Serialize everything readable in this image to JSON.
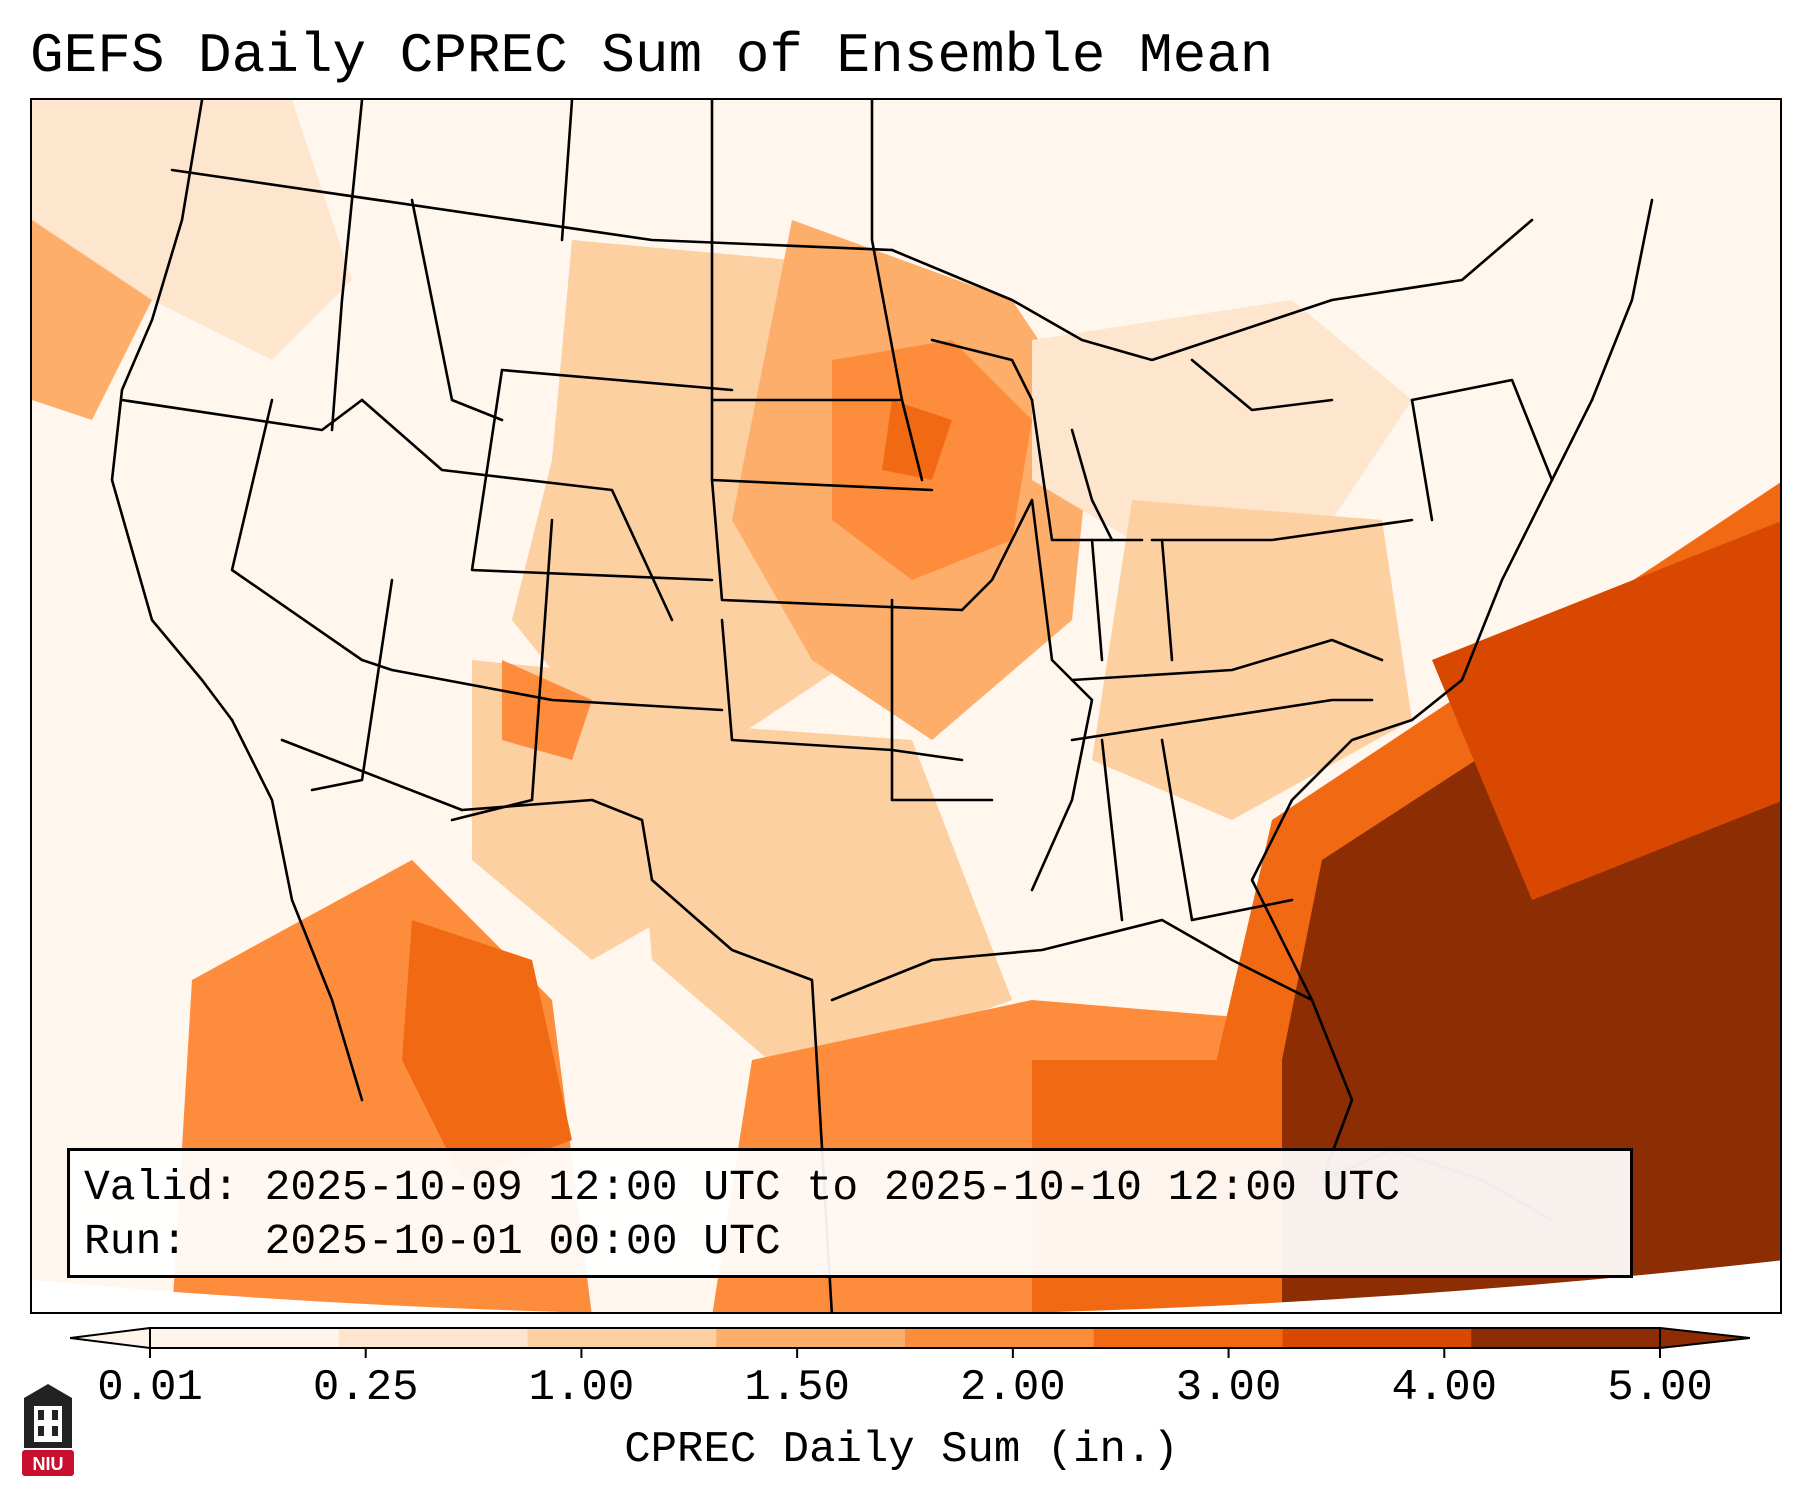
{
  "title": "GEFS Daily CPREC Sum of Ensemble Mean",
  "info": {
    "valid_line": "Valid: 2025-10-09 12:00 UTC to 2025-10-10 12:00 UTC",
    "run_line": "Run:   2025-10-01 00:00 UTC"
  },
  "colorbar": {
    "label": "CPREC Daily Sum (in.)",
    "ticks": [
      "0.01",
      "0.25",
      "1.00",
      "1.50",
      "2.00",
      "3.00",
      "4.00",
      "5.00"
    ],
    "colors": [
      "#fff5eb",
      "#fee6ce",
      "#fdd0a2",
      "#fdae6b",
      "#fd8d3c",
      "#f16913",
      "#d94801",
      "#8c2d04"
    ]
  },
  "logo": {
    "text": "NIU",
    "color": "#c8102e"
  }
}
